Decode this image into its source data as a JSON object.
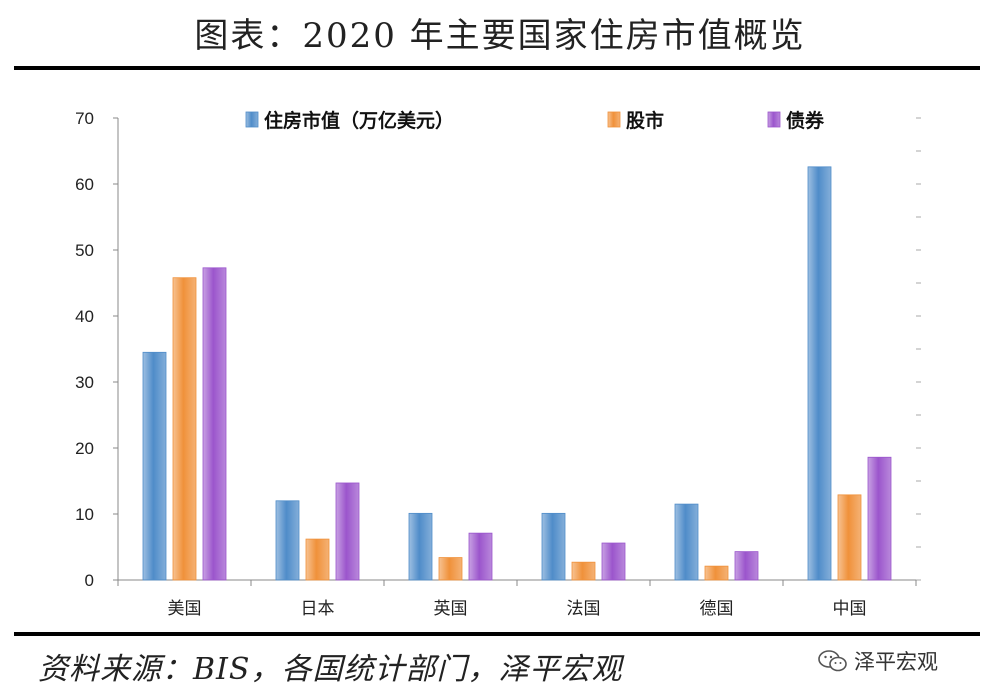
{
  "page": {
    "title": "图表：2020 年主要国家住房市值概览",
    "source": "资料来源：BIS，各国统计部门，泽平宏观",
    "watermark": "泽平宏观",
    "watermark_icon": "wechat-icon"
  },
  "chart_data": {
    "type": "bar",
    "categories": [
      "美国",
      "日本",
      "英国",
      "法国",
      "德国",
      "中国"
    ],
    "series": [
      {
        "name": "住房市值（万亿美元）",
        "color": "#4f8cc9",
        "values": [
          34.5,
          12.0,
          10.1,
          10.1,
          11.5,
          62.6
        ]
      },
      {
        "name": "股市",
        "color": "#f0913a",
        "values": [
          45.8,
          6.2,
          3.4,
          2.7,
          2.1,
          12.9
        ]
      },
      {
        "name": "债券",
        "color": "#9b55cc",
        "values": [
          47.3,
          14.7,
          7.1,
          5.6,
          4.3,
          18.6
        ]
      }
    ],
    "ylim": [
      0,
      70
    ],
    "yticks": [
      0,
      10,
      20,
      30,
      40,
      50,
      60,
      70
    ],
    "legend_position": "top",
    "grid": false
  }
}
